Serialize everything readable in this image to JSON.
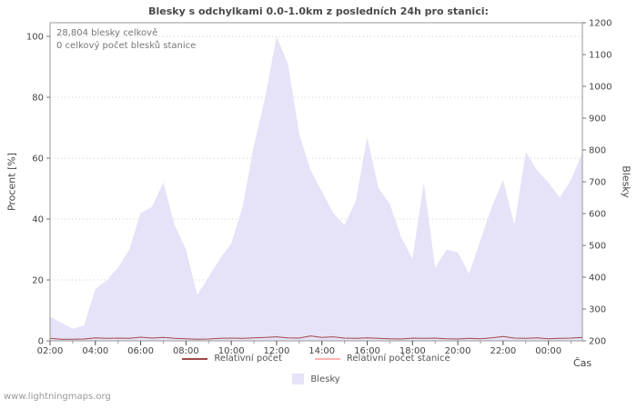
{
  "page": {
    "watermark": "www.lightningmaps.org"
  },
  "chart_data": {
    "type": "area",
    "title": "Blesky s odchylkami 0.0-1.0km z posledních 24h pro stanici:",
    "xlabel": "Čas",
    "ylabel_left": "Procent [%]",
    "ylabel_right": "Blesky",
    "annotations": [
      "28,804 blesky celkově",
      "0 celkový počet blesků stanice"
    ],
    "grid": true,
    "legend_position": "bottom",
    "ylim_left": [
      0,
      104.5
    ],
    "yticks_left": [
      0,
      20,
      40,
      60,
      80,
      100
    ],
    "ylim_right": [
      200,
      1200
    ],
    "yticks_right": [
      200,
      300,
      400,
      500,
      600,
      700,
      800,
      900,
      1000,
      1100,
      1200
    ],
    "x_tick_hours": [
      2,
      4,
      6,
      8,
      10,
      12,
      14,
      16,
      18,
      20,
      22,
      24
    ],
    "x_tick_labels": [
      "02:00",
      "04:00",
      "06:00",
      "08:00",
      "10:00",
      "12:00",
      "14:00",
      "16:00",
      "18:00",
      "20:00",
      "22:00",
      "00:00"
    ],
    "x_hours": [
      2,
      2.5,
      3,
      3.5,
      4,
      4.5,
      5,
      5.5,
      6,
      6.5,
      7,
      7.5,
      8,
      8.5,
      9,
      9.5,
      10,
      10.5,
      11,
      11.5,
      12,
      12.5,
      13,
      13.5,
      14,
      14.5,
      15,
      15.5,
      16,
      16.5,
      17,
      17.5,
      18,
      18.5,
      19,
      19.5,
      20,
      20.5,
      21,
      21.5,
      22,
      22.5,
      23,
      23.5,
      24,
      24.5,
      25,
      25.5
    ],
    "series": [
      {
        "name": "Blesky",
        "type": "area",
        "axis": "right",
        "color": "#e6e2f7",
        "values": [
          277,
          257,
          238,
          248,
          363,
          390,
          430,
          487,
          602,
          621,
          698,
          564,
          487,
          344,
          401,
          458,
          506,
          621,
          813,
          966,
          1157,
          1071,
          851,
          736,
          669,
          602,
          564,
          640,
          841,
          679,
          631,
          525,
          458,
          698,
          430,
          487,
          478,
          411,
          516,
          621,
          707,
          564,
          793,
          736,
          698,
          650,
          707,
          793
        ]
      },
      {
        "name": "Relativní počet stanice",
        "type": "line",
        "axis": "left",
        "color": "#ffb3b3",
        "values": [
          0,
          0,
          0,
          0,
          0,
          0,
          0,
          0,
          0,
          0,
          0,
          0,
          0,
          0,
          0,
          0,
          0,
          0,
          0,
          0,
          0,
          0,
          0,
          0,
          0,
          0,
          0,
          0,
          0,
          0,
          0,
          0,
          0,
          0,
          0,
          0,
          0,
          0,
          0,
          0,
          0,
          0,
          0,
          0,
          0,
          0,
          0,
          0
        ]
      },
      {
        "name": "Relativní počet",
        "type": "line",
        "axis": "left",
        "color": "#a04848",
        "values": [
          0.8,
          0.5,
          0.5,
          0.6,
          1.0,
          0.8,
          0.9,
          0.8,
          1.2,
          0.9,
          1.1,
          0.8,
          0.7,
          0.5,
          0.6,
          0.8,
          0.9,
          0.8,
          1.0,
          1.1,
          1.3,
          1.0,
          0.9,
          1.6,
          1.1,
          1.3,
          0.9,
          0.8,
          1.0,
          0.8,
          0.7,
          0.6,
          0.9,
          0.8,
          0.9,
          0.7,
          0.6,
          0.8,
          0.7,
          1.0,
          1.4,
          0.9,
          0.8,
          1.0,
          0.7,
          0.8,
          0.9,
          1.1
        ]
      }
    ],
    "legend": [
      {
        "label": "Relativní počet",
        "color": "#a04848",
        "kind": "line"
      },
      {
        "label": "Relativní počet stanice",
        "color": "#ffb3b3",
        "kind": "line"
      },
      {
        "label": "Blesky",
        "color": "#e6e2f7",
        "kind": "area"
      }
    ]
  }
}
